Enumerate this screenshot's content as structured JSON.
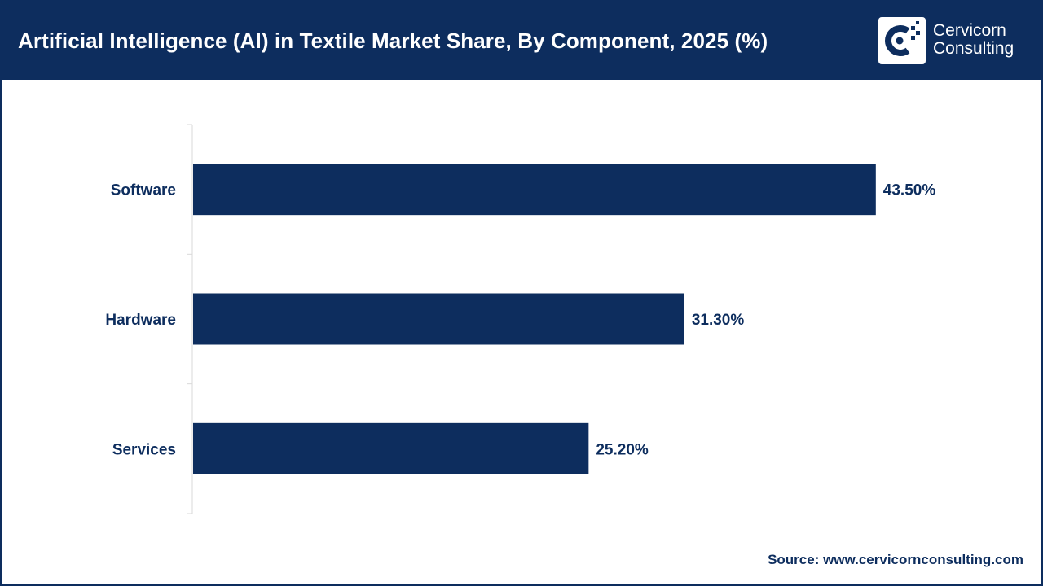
{
  "header": {
    "title": "Artificial Intelligence (AI) in Textile Market Share, By Component, 2025 (%)"
  },
  "logo": {
    "line1": "Cervicorn",
    "line2": "Consulting"
  },
  "colors": {
    "brand": "#0d2d5e",
    "bar": "#0d2d5e",
    "axis": "#d9d9d9"
  },
  "chart_data": {
    "type": "bar",
    "orientation": "horizontal",
    "categories": [
      "Software",
      "Hardware",
      "Services"
    ],
    "values": [
      43.5,
      31.3,
      25.2
    ],
    "value_labels": [
      "43.50%",
      "31.30%",
      "25.20%"
    ],
    "title": "Artificial Intelligence (AI) in Textile Market Share, By Component, 2025 (%)",
    "xlabel": "",
    "ylabel": "",
    "xlim": [
      0,
      50
    ],
    "grid": false,
    "legend": "none"
  },
  "footer": {
    "source": "Source: www.cervicornconsulting.com"
  }
}
